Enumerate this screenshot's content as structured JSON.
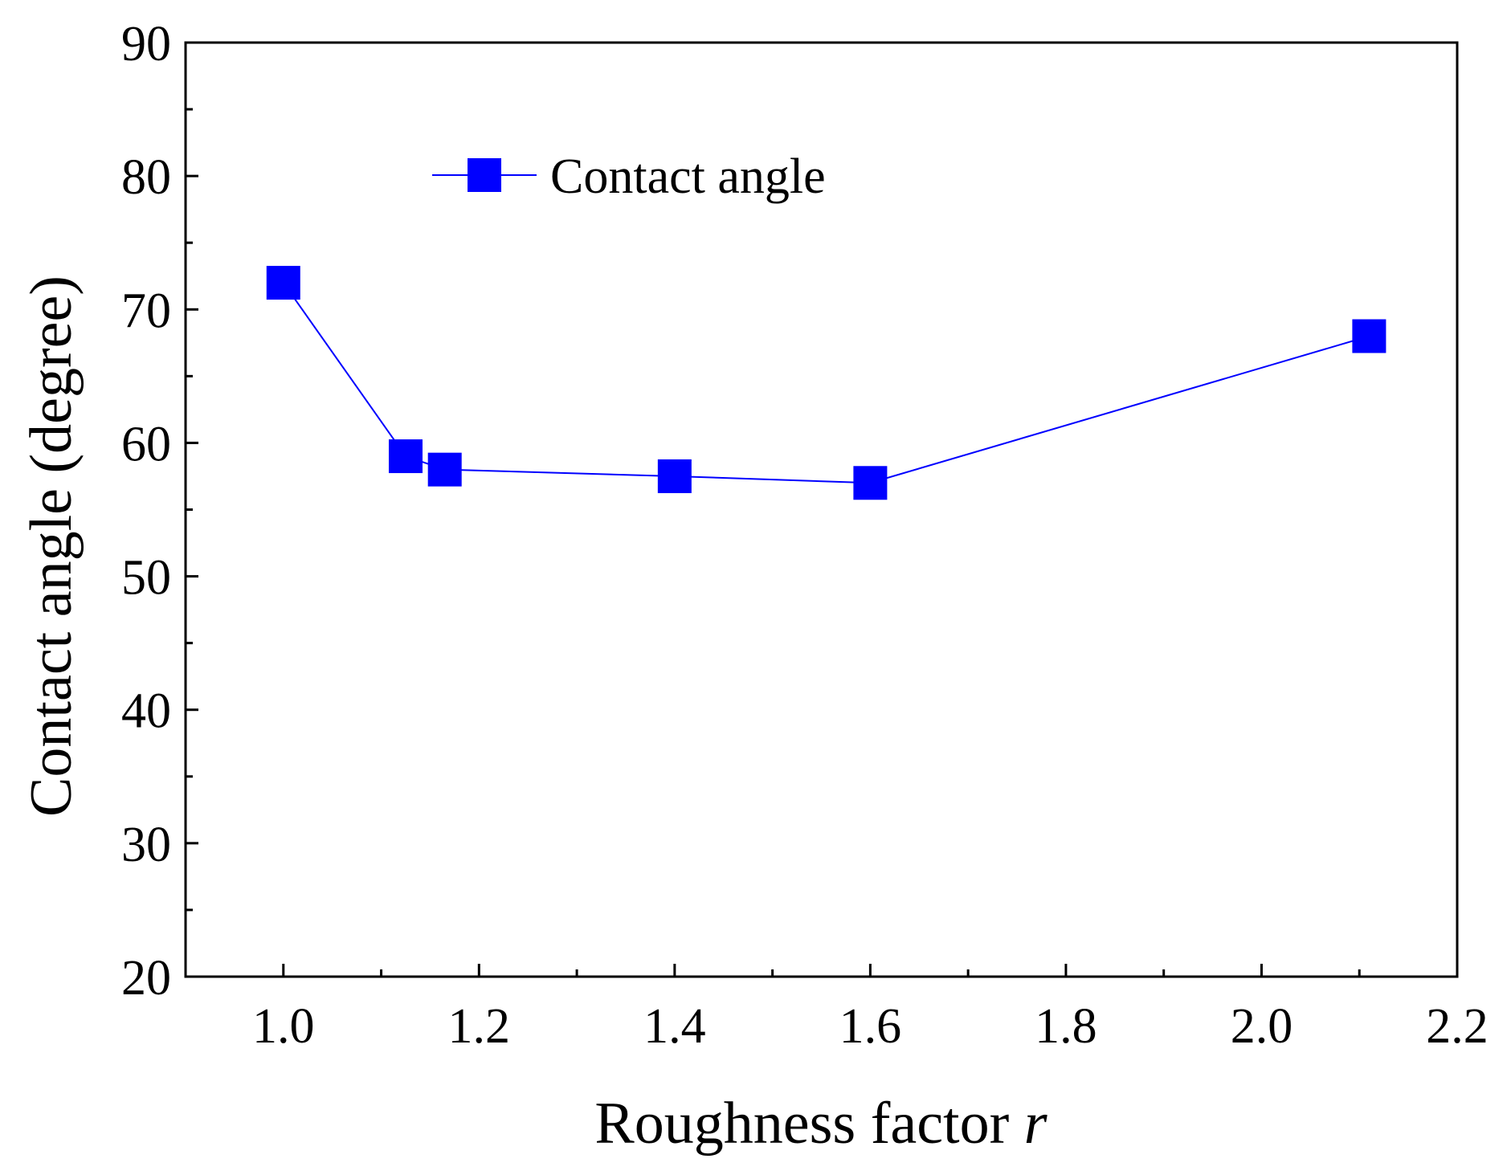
{
  "chart_data": {
    "type": "line",
    "title": "",
    "xlabel": "Roughness factor",
    "xlabel_var": "r",
    "ylabel": "Contact angle (degree)",
    "xlim": [
      0.9,
      2.2
    ],
    "ylim": [
      20,
      90
    ],
    "x_ticks": [
      1.0,
      1.2,
      1.4,
      1.6,
      1.8,
      2.0,
      2.2
    ],
    "x_tick_labels": [
      "1.0",
      "1.2",
      "1.4",
      "1.6",
      "1.8",
      "2.0",
      "2.2"
    ],
    "y_ticks": [
      20,
      30,
      40,
      50,
      60,
      70,
      80,
      90
    ],
    "y_tick_labels": [
      "20",
      "30",
      "40",
      "50",
      "60",
      "70",
      "80",
      "90"
    ],
    "x_minor_step": 0.1,
    "y_minor_step": 5,
    "grid": false,
    "legend_position": "top-left",
    "series": [
      {
        "name": "Contact angle",
        "marker": "square",
        "color": "#0000ff",
        "x": [
          1.0,
          1.125,
          1.165,
          1.4,
          1.6,
          2.11
        ],
        "values": [
          72,
          59,
          58,
          57.5,
          57,
          68
        ]
      }
    ]
  }
}
